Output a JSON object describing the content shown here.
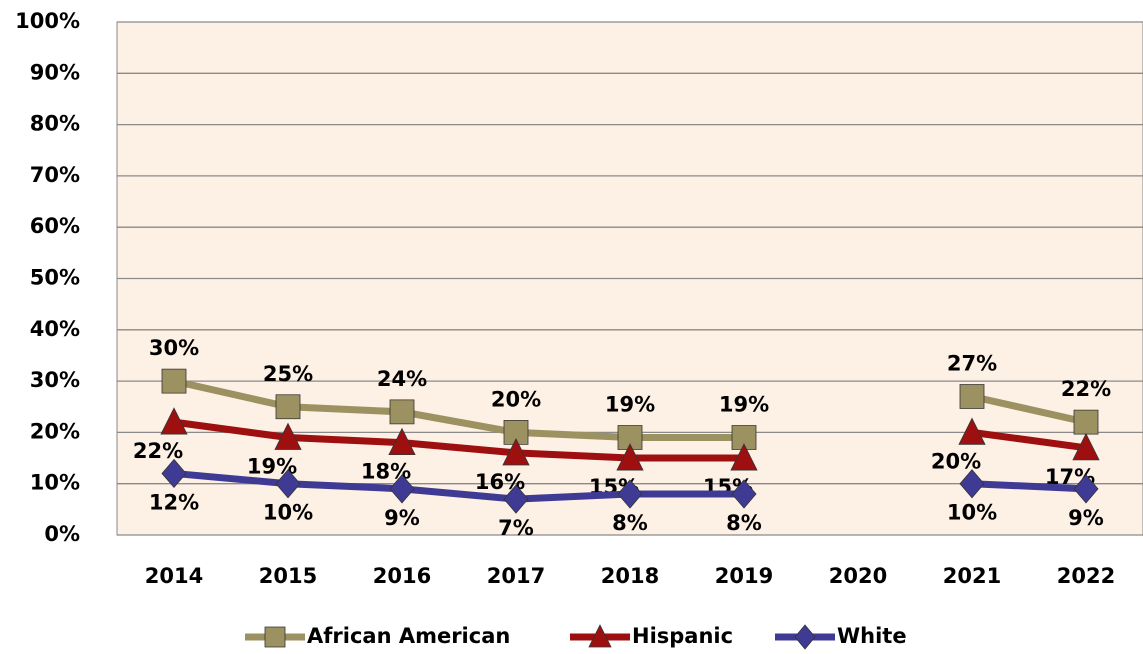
{
  "chart_data": {
    "type": "line",
    "categories": [
      "2014",
      "2015",
      "2016",
      "2017",
      "2018",
      "2019",
      "2020",
      "2021",
      "2022"
    ],
    "series": [
      {
        "name": "African American",
        "color": "#9c9160",
        "marker": "square",
        "values": [
          30,
          25,
          24,
          20,
          19,
          19,
          null,
          27,
          22
        ],
        "value_labels": [
          "30%",
          "25%",
          "24%",
          "20%",
          "19%",
          "19%",
          null,
          "27%",
          "22%"
        ]
      },
      {
        "name": "Hispanic",
        "color": "#9e1010",
        "marker": "triangle",
        "values": [
          22,
          19,
          18,
          16,
          15,
          15,
          null,
          20,
          17
        ],
        "value_labels": [
          "22%",
          "19%",
          "18%",
          "16%",
          "15%",
          "15%",
          null,
          "20%",
          "17%"
        ]
      },
      {
        "name": "White",
        "color": "#3f3b95",
        "marker": "diamond",
        "values": [
          12,
          10,
          9,
          7,
          8,
          8,
          null,
          10,
          9
        ],
        "value_labels": [
          "12%",
          "10%",
          "9%",
          "7%",
          "8%",
          "8%",
          null,
          "10%",
          "9%"
        ]
      }
    ],
    "ylim": [
      0,
      100
    ],
    "yticks": [
      {
        "value": 0,
        "label": "0%"
      },
      {
        "value": 10,
        "label": "10%"
      },
      {
        "value": 20,
        "label": "20%"
      },
      {
        "value": 30,
        "label": "30%"
      },
      {
        "value": 40,
        "label": "40%"
      },
      {
        "value": 50,
        "label": "50%"
      },
      {
        "value": 60,
        "label": "60%"
      },
      {
        "value": 70,
        "label": "70%"
      },
      {
        "value": 80,
        "label": "80%"
      },
      {
        "value": 90,
        "label": "90%"
      },
      {
        "value": 100,
        "label": "100%"
      }
    ],
    "grid": true,
    "legend": "bottom",
    "background": "#fdf0e4"
  }
}
